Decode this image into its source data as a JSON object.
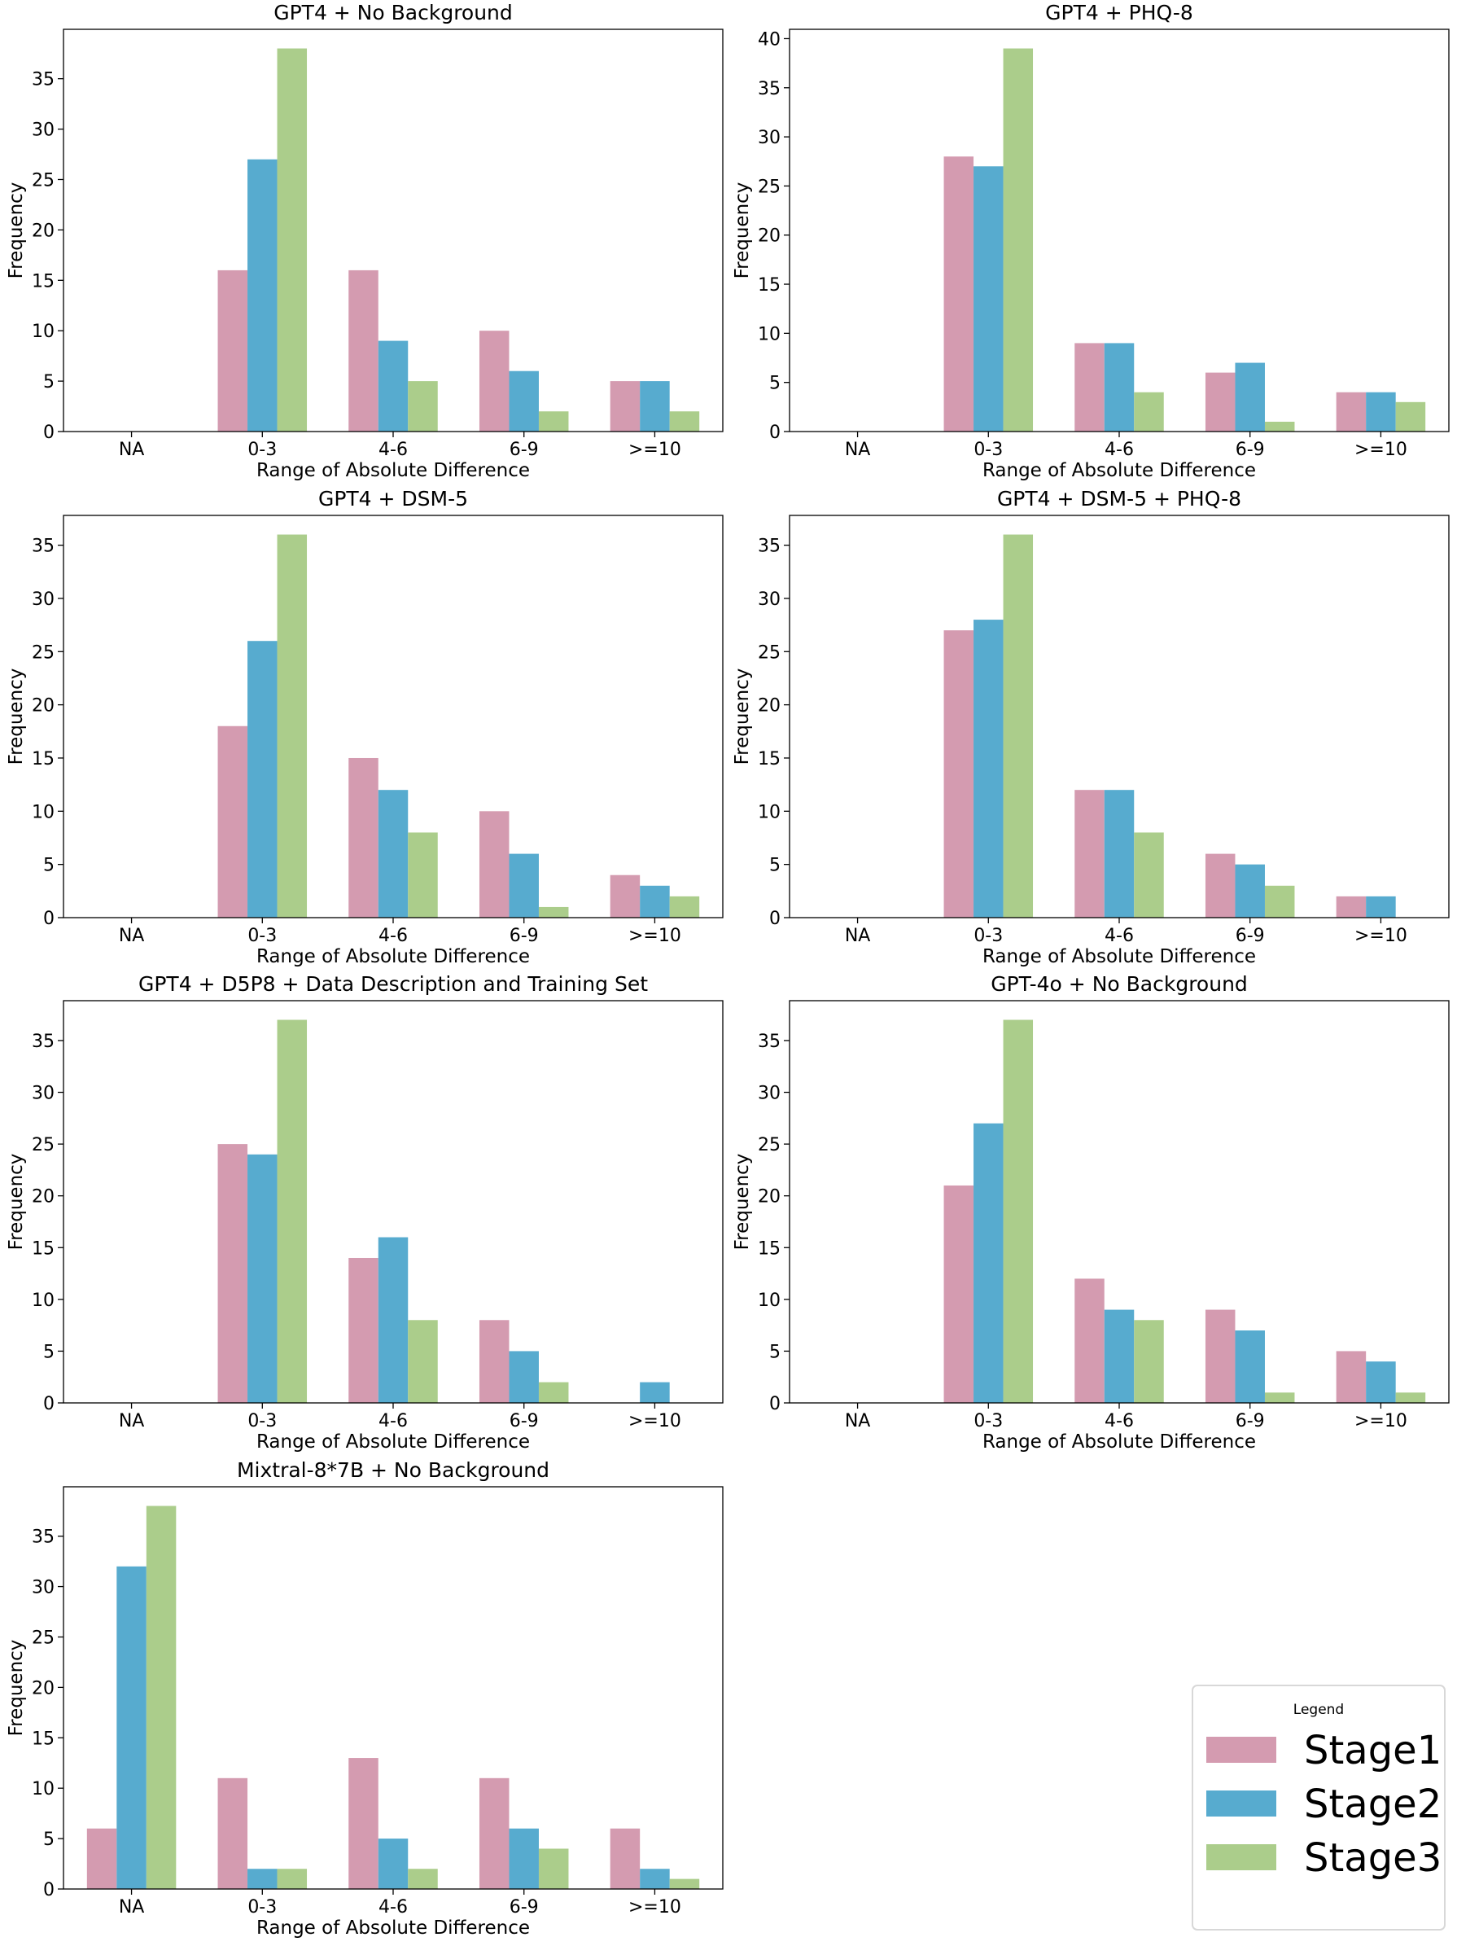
{
  "figure": {
    "legend": {
      "title": "Legend",
      "placement": "bottom-right",
      "entries": [
        "Stage1",
        "Stage2",
        "Stage3"
      ]
    },
    "colors": {
      "Stage1": "#d49bb0",
      "Stage2": "#57abcf",
      "Stage3": "#abcd8b"
    }
  },
  "chart_data": [
    {
      "type": "bar",
      "title": "GPT4 + No Background",
      "xlabel": "Range of Absolute Difference",
      "ylabel": "Frequency",
      "categories": [
        "NA",
        "0-3",
        "4-6",
        "6-9",
        ">=10"
      ],
      "ylim": [
        0,
        39.9
      ],
      "yticks": [
        0,
        5,
        10,
        15,
        20,
        25,
        30,
        35
      ],
      "series": [
        {
          "name": "Stage1",
          "values": [
            0,
            16,
            16,
            10,
            5
          ]
        },
        {
          "name": "Stage2",
          "values": [
            0,
            27,
            9,
            6,
            5
          ]
        },
        {
          "name": "Stage3",
          "values": [
            0,
            38,
            5,
            2,
            2
          ]
        }
      ]
    },
    {
      "type": "bar",
      "title": "GPT4 + PHQ-8",
      "xlabel": "Range of Absolute Difference",
      "ylabel": "Frequency",
      "categories": [
        "NA",
        "0-3",
        "4-6",
        "6-9",
        ">=10"
      ],
      "ylim": [
        0,
        40.95
      ],
      "yticks": [
        0,
        5,
        10,
        15,
        20,
        25,
        30,
        35,
        40
      ],
      "series": [
        {
          "name": "Stage1",
          "values": [
            0,
            28,
            9,
            6,
            4
          ]
        },
        {
          "name": "Stage2",
          "values": [
            0,
            27,
            9,
            7,
            4
          ]
        },
        {
          "name": "Stage3",
          "values": [
            0,
            39,
            4,
            1,
            3
          ]
        }
      ]
    },
    {
      "type": "bar",
      "title": "GPT4 + DSM-5",
      "xlabel": "Range of Absolute Difference",
      "ylabel": "Frequency",
      "categories": [
        "NA",
        "0-3",
        "4-6",
        "6-9",
        ">=10"
      ],
      "ylim": [
        0,
        37.8
      ],
      "yticks": [
        0,
        5,
        10,
        15,
        20,
        25,
        30,
        35
      ],
      "series": [
        {
          "name": "Stage1",
          "values": [
            0,
            18,
            15,
            10,
            4
          ]
        },
        {
          "name": "Stage2",
          "values": [
            0,
            26,
            12,
            6,
            3
          ]
        },
        {
          "name": "Stage3",
          "values": [
            0,
            36,
            8,
            1,
            2
          ]
        }
      ]
    },
    {
      "type": "bar",
      "title": "GPT4 + DSM-5 + PHQ-8",
      "xlabel": "Range of Absolute Difference",
      "ylabel": "Frequency",
      "categories": [
        "NA",
        "0-3",
        "4-6",
        "6-9",
        ">=10"
      ],
      "ylim": [
        0,
        37.8
      ],
      "yticks": [
        0,
        5,
        10,
        15,
        20,
        25,
        30,
        35
      ],
      "series": [
        {
          "name": "Stage1",
          "values": [
            0,
            27,
            12,
            6,
            2
          ]
        },
        {
          "name": "Stage2",
          "values": [
            0,
            28,
            12,
            5,
            2
          ]
        },
        {
          "name": "Stage3",
          "values": [
            0,
            36,
            8,
            3,
            0
          ]
        }
      ]
    },
    {
      "type": "bar",
      "title": "GPT4 + D5P8 + Data Description and Training Set",
      "xlabel": "Range of Absolute Difference",
      "ylabel": "Frequency",
      "categories": [
        "NA",
        "0-3",
        "4-6",
        "6-9",
        ">=10"
      ],
      "ylim": [
        0,
        38.85
      ],
      "yticks": [
        0,
        5,
        10,
        15,
        20,
        25,
        30,
        35
      ],
      "series": [
        {
          "name": "Stage1",
          "values": [
            0,
            25,
            14,
            8,
            0
          ]
        },
        {
          "name": "Stage2",
          "values": [
            0,
            24,
            16,
            5,
            2
          ]
        },
        {
          "name": "Stage3",
          "values": [
            0,
            37,
            8,
            2,
            0
          ]
        }
      ]
    },
    {
      "type": "bar",
      "title": "GPT-4o + No Background",
      "xlabel": "Range of Absolute Difference",
      "ylabel": "Frequency",
      "categories": [
        "NA",
        "0-3",
        "4-6",
        "6-9",
        ">=10"
      ],
      "ylim": [
        0,
        38.85
      ],
      "yticks": [
        0,
        5,
        10,
        15,
        20,
        25,
        30,
        35
      ],
      "series": [
        {
          "name": "Stage1",
          "values": [
            0,
            21,
            12,
            9,
            5
          ]
        },
        {
          "name": "Stage2",
          "values": [
            0,
            27,
            9,
            7,
            4
          ]
        },
        {
          "name": "Stage3",
          "values": [
            0,
            37,
            8,
            1,
            1
          ]
        }
      ]
    },
    {
      "type": "bar",
      "title": "Mixtral-8*7B + No Background",
      "xlabel": "Range of Absolute Difference",
      "ylabel": "Frequency",
      "categories": [
        "NA",
        "0-3",
        "4-6",
        "6-9",
        ">=10"
      ],
      "ylim": [
        0,
        39.9
      ],
      "yticks": [
        0,
        5,
        10,
        15,
        20,
        25,
        30,
        35
      ],
      "series": [
        {
          "name": "Stage1",
          "values": [
            6,
            11,
            13,
            11,
            6
          ]
        },
        {
          "name": "Stage2",
          "values": [
            32,
            2,
            5,
            6,
            2
          ]
        },
        {
          "name": "Stage3",
          "values": [
            38,
            2,
            2,
            4,
            1
          ]
        }
      ]
    }
  ]
}
